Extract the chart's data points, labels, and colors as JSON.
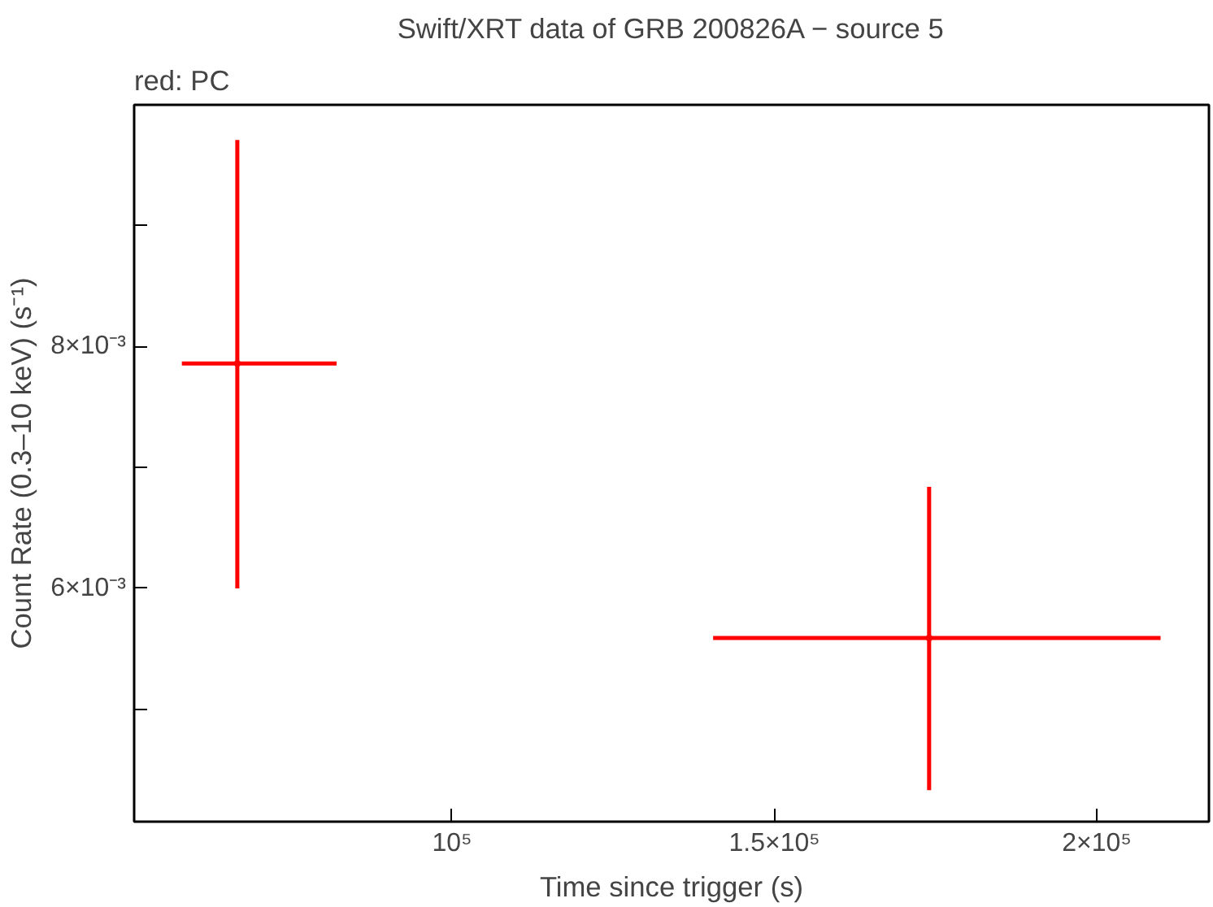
{
  "chart_data": {
    "type": "scatter",
    "title": "Swift/XRT data of GRB 200826A − source 5",
    "xlabel": "Time since trigger (s)",
    "ylabel": "Count Rate (0.3–10 keV) (s⁻¹)",
    "annotations": [
      "red: PC"
    ],
    "grid": false,
    "x": [
      66700,
      174000
    ],
    "series": [
      {
        "color": "#ff0000",
        "values": [
          0.00786,
          0.00559
        ],
        "errors": [
          [
            0.006,
            0.00971
          ],
          [
            0.00433,
            0.00684
          ]
        ],
        "xerrors": [
          [
            58100,
            82100
          ],
          [
            140500,
            209900
          ]
        ]
      }
    ],
    "xlim": [
      50700,
      217400
    ],
    "ylim": [
      0.00407,
      0.01
    ],
    "xticks": [
      {
        "value": 100000,
        "label": "10⁵"
      },
      {
        "value": 150000,
        "label": "1.5×10⁵"
      },
      {
        "value": 200000,
        "label": "2×10⁵"
      }
    ],
    "yticks": [
      {
        "value": 0.005,
        "label": null
      },
      {
        "value": 0.006,
        "label": "6×10⁻³"
      },
      {
        "value": 0.007,
        "label": null
      },
      {
        "value": 0.008,
        "label": "8×10⁻³"
      },
      {
        "value": 0.009,
        "label": null
      }
    ]
  }
}
